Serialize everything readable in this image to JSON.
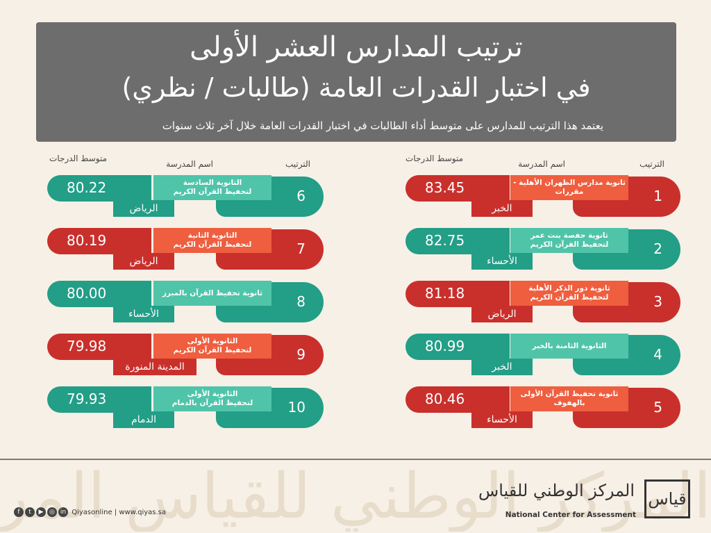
{
  "header": {
    "title_line1": "ترتيب المدارس العشر الأولى",
    "title_line2": "في اختبار القدرات العامة (طالبات / نظري)",
    "subtitle": "يعتمد هذا الترتيب للمدارس على متوسط أداء الطالبات في اختبار القدرات العامة خلال آخر ثلاث سنوات"
  },
  "columns": {
    "rank": "الترتيب",
    "school": "اسم المدرسة",
    "score": "متوسط الدرجات"
  },
  "schools_right": [
    {
      "rank": "1",
      "name": "ثانوية مدارس الظهران الأهلية - مقررات",
      "city": "الخبر",
      "score": "83.45",
      "color": "#c9302c"
    },
    {
      "rank": "2",
      "name": "ثانوية حفصة بنت عمر\nلتحفيظ القرآن الكريم",
      "city": "الأحساء",
      "score": "82.75",
      "color": "#239e87"
    },
    {
      "rank": "3",
      "name": "ثانوية دور الذكر الأهلية\nلتحفيظ القرآن الكريم",
      "city": "الرياض",
      "score": "81.18",
      "color": "#c9302c"
    },
    {
      "rank": "4",
      "name": "الثانوية الثامنة بالخبر",
      "city": "الخبر",
      "score": "80.99",
      "color": "#239e87"
    },
    {
      "rank": "5",
      "name": "ثانوية تحفيظ القرآن الأولى بالهفوف",
      "city": "الأحساء",
      "score": "80.46",
      "color": "#c9302c"
    }
  ],
  "schools_left": [
    {
      "rank": "6",
      "name": "الثانوية السادسة\nلتحفيظ القرآن الكريم",
      "city": "الرياض",
      "score": "80.22",
      "color": "#239e87"
    },
    {
      "rank": "7",
      "name": "الثانوية الثانية\nلتحفيظ القرآن الكريم",
      "city": "الرياض",
      "score": "80.19",
      "color": "#c9302c"
    },
    {
      "rank": "8",
      "name": "ثانوية تحفيظ القرآن بالمبرز",
      "city": "الأحساء",
      "score": "80.00",
      "color": "#239e87"
    },
    {
      "rank": "9",
      "name": "الثانوية الأولى\nلتحفيظ القرآن الكريم",
      "city": "المدينة المنورة",
      "score": "79.98",
      "color": "#c9302c"
    },
    {
      "rank": "10",
      "name": "الثانوية الأولى\nلتحفيظ القرآن بالدمام",
      "city": "الدمام",
      "score": "79.93",
      "color": "#239e87"
    }
  ],
  "footer": {
    "links": "Qiyasonline | www.qiyas.sa",
    "social_icons": [
      "facebook-icon",
      "twitter-icon",
      "youtube-icon",
      "instagram-icon",
      "linkedin-icon"
    ],
    "logo_ar": "المركز الوطني للقياس",
    "logo_en": "National Center for Assessment",
    "logo_mark": "قياس"
  }
}
